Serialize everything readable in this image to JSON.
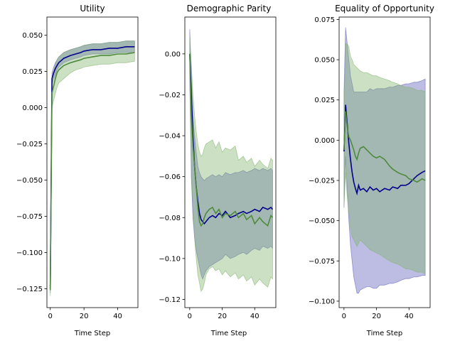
{
  "colors": {
    "series_blue": "#00008b",
    "series_green": "#4f8a3c",
    "band_blue": "#5b5bb8",
    "band_green": "#7fb26b"
  },
  "chart_data": [
    {
      "type": "line",
      "title": "Utility",
      "xlabel": "Time Step",
      "ylabel": "",
      "xlim": [
        -2,
        52
      ],
      "ylim": [
        -0.138,
        0.0625
      ],
      "xticks": [
        0,
        20,
        40
      ],
      "yticks": [
        -0.125,
        -0.1,
        -0.075,
        -0.05,
        -0.025,
        0.0,
        0.025,
        0.05
      ],
      "ytick_labels": [
        "−0.125",
        "−0.100",
        "−0.075",
        "−0.050",
        "−0.025",
        "0.000",
        "0.025",
        "0.050"
      ],
      "x": [
        0,
        1,
        2,
        3,
        4,
        5,
        6,
        8,
        10,
        12,
        15,
        18,
        20,
        25,
        30,
        35,
        40,
        45,
        50
      ],
      "series": [
        {
          "color_key": "series_blue",
          "band_key": "band_blue",
          "values": [
            -0.125,
            0.02,
            0.024,
            0.027,
            0.029,
            0.031,
            0.032,
            0.034,
            0.035,
            0.036,
            0.037,
            0.038,
            0.039,
            0.04,
            0.04,
            0.041,
            0.041,
            0.042,
            0.042
          ],
          "lower": [
            -0.128,
            0.016,
            0.02,
            0.023,
            0.026,
            0.028,
            0.029,
            0.031,
            0.032,
            0.033,
            0.034,
            0.035,
            0.036,
            0.037,
            0.037,
            0.037,
            0.038,
            0.038,
            0.038
          ],
          "upper": [
            -0.122,
            0.024,
            0.028,
            0.031,
            0.033,
            0.035,
            0.036,
            0.038,
            0.039,
            0.04,
            0.041,
            0.042,
            0.043,
            0.044,
            0.044,
            0.045,
            0.045,
            0.046,
            0.046
          ]
        },
        {
          "color_key": "series_green",
          "band_key": "band_green",
          "values": [
            -0.126,
            0.01,
            0.015,
            0.02,
            0.024,
            0.026,
            0.027,
            0.029,
            0.03,
            0.031,
            0.032,
            0.033,
            0.034,
            0.035,
            0.036,
            0.036,
            0.037,
            0.037,
            0.038
          ],
          "lower": [
            -0.13,
            0.0,
            0.005,
            0.01,
            0.014,
            0.017,
            0.018,
            0.02,
            0.022,
            0.024,
            0.026,
            0.027,
            0.028,
            0.029,
            0.03,
            0.03,
            0.031,
            0.031,
            0.032
          ],
          "upper": [
            -0.122,
            0.02,
            0.025,
            0.03,
            0.033,
            0.035,
            0.036,
            0.038,
            0.039,
            0.04,
            0.041,
            0.042,
            0.043,
            0.044,
            0.044,
            0.045,
            0.045,
            0.046,
            0.046
          ]
        }
      ]
    },
    {
      "type": "line",
      "title": "Demographic Parity",
      "xlabel": "Time Step",
      "ylabel": "",
      "xlim": [
        -3,
        53
      ],
      "ylim": [
        -0.124,
        0.018
      ],
      "xticks": [
        0,
        20,
        40
      ],
      "yticks": [
        -0.12,
        -0.1,
        -0.08,
        -0.06,
        -0.04,
        -0.02,
        0.0
      ],
      "ytick_labels": [
        "−0.12",
        "−0.10",
        "−0.08",
        "−0.06",
        "−0.04",
        "−0.02",
        "0.00"
      ],
      "x": [
        0,
        1,
        2,
        3,
        4,
        5,
        6,
        7,
        8,
        9,
        10,
        12,
        14,
        16,
        18,
        20,
        22,
        25,
        28,
        30,
        33,
        35,
        38,
        40,
        43,
        45,
        48,
        50,
        51
      ],
      "series": [
        {
          "color_key": "series_blue",
          "band_key": "band_blue",
          "values": [
            0.0,
            -0.02,
            -0.04,
            -0.055,
            -0.065,
            -0.072,
            -0.078,
            -0.081,
            -0.082,
            -0.083,
            -0.082,
            -0.08,
            -0.079,
            -0.08,
            -0.078,
            -0.079,
            -0.077,
            -0.08,
            -0.079,
            -0.078,
            -0.077,
            -0.078,
            -0.077,
            -0.076,
            -0.077,
            -0.075,
            -0.076,
            -0.075,
            -0.076
          ],
          "lower": [
            -0.012,
            -0.06,
            -0.08,
            -0.09,
            -0.096,
            -0.1,
            -0.104,
            -0.108,
            -0.11,
            -0.108,
            -0.106,
            -0.104,
            -0.103,
            -0.102,
            -0.101,
            -0.1,
            -0.098,
            -0.1,
            -0.099,
            -0.098,
            -0.097,
            -0.098,
            -0.096,
            -0.095,
            -0.096,
            -0.094,
            -0.095,
            -0.094,
            -0.095
          ],
          "upper": [
            0.012,
            -0.01,
            -0.03,
            -0.04,
            -0.048,
            -0.055,
            -0.058,
            -0.06,
            -0.061,
            -0.062,
            -0.061,
            -0.06,
            -0.059,
            -0.06,
            -0.059,
            -0.06,
            -0.058,
            -0.059,
            -0.058,
            -0.058,
            -0.057,
            -0.058,
            -0.057,
            -0.056,
            -0.057,
            -0.056,
            -0.057,
            -0.056,
            -0.057
          ]
        },
        {
          "color_key": "series_green",
          "band_key": "band_green",
          "values": [
            0.0,
            -0.03,
            -0.045,
            -0.055,
            -0.065,
            -0.075,
            -0.082,
            -0.084,
            -0.083,
            -0.08,
            -0.078,
            -0.076,
            -0.075,
            -0.078,
            -0.076,
            -0.08,
            -0.078,
            -0.079,
            -0.077,
            -0.08,
            -0.078,
            -0.081,
            -0.079,
            -0.083,
            -0.08,
            -0.082,
            -0.084,
            -0.079,
            -0.08
          ],
          "lower": [
            -0.01,
            -0.055,
            -0.075,
            -0.09,
            -0.1,
            -0.108,
            -0.112,
            -0.116,
            -0.115,
            -0.112,
            -0.108,
            -0.105,
            -0.104,
            -0.106,
            -0.105,
            -0.108,
            -0.106,
            -0.109,
            -0.107,
            -0.11,
            -0.108,
            -0.111,
            -0.109,
            -0.113,
            -0.11,
            -0.112,
            -0.114,
            -0.109,
            -0.11
          ],
          "upper": [
            0.008,
            -0.005,
            -0.02,
            -0.03,
            -0.038,
            -0.044,
            -0.048,
            -0.05,
            -0.049,
            -0.046,
            -0.044,
            -0.043,
            -0.042,
            -0.046,
            -0.043,
            -0.048,
            -0.046,
            -0.047,
            -0.045,
            -0.052,
            -0.05,
            -0.053,
            -0.051,
            -0.055,
            -0.052,
            -0.054,
            -0.056,
            -0.051,
            -0.052
          ]
        }
      ]
    },
    {
      "type": "line",
      "title": "Equality of Opportunity",
      "xlabel": "Time Step",
      "ylabel": "",
      "xlim": [
        -3,
        53
      ],
      "ylim": [
        -0.104,
        0.0765
      ],
      "xticks": [
        0,
        20,
        40
      ],
      "yticks": [
        -0.1,
        -0.075,
        -0.05,
        -0.025,
        0.0,
        0.025,
        0.05,
        0.075
      ],
      "ytick_labels": [
        "−0.100",
        "−0.075",
        "−0.050",
        "−0.025",
        "0.000",
        "0.025",
        "0.050",
        "0.075"
      ],
      "x": [
        0,
        1,
        2,
        3,
        4,
        5,
        6,
        7,
        8,
        9,
        10,
        12,
        14,
        16,
        18,
        20,
        22,
        25,
        28,
        30,
        33,
        35,
        38,
        40,
        43,
        45,
        48,
        50
      ],
      "series": [
        {
          "color_key": "series_blue",
          "band_key": "band_blue",
          "values": [
            -0.007,
            0.022,
            0.01,
            -0.002,
            -0.012,
            -0.02,
            -0.026,
            -0.03,
            -0.033,
            -0.028,
            -0.031,
            -0.03,
            -0.032,
            -0.029,
            -0.031,
            -0.03,
            -0.032,
            -0.03,
            -0.031,
            -0.029,
            -0.03,
            -0.028,
            -0.028,
            -0.027,
            -0.024,
            -0.022,
            -0.02,
            -0.019
          ],
          "lower": [
            -0.042,
            -0.01,
            -0.03,
            -0.05,
            -0.065,
            -0.075,
            -0.085,
            -0.09,
            -0.095,
            -0.095,
            -0.093,
            -0.092,
            -0.091,
            -0.091,
            -0.092,
            -0.092,
            -0.09,
            -0.09,
            -0.089,
            -0.089,
            -0.088,
            -0.087,
            -0.086,
            -0.086,
            -0.085,
            -0.085,
            -0.084,
            -0.084
          ],
          "upper": [
            0.03,
            0.07,
            0.06,
            0.05,
            0.04,
            0.035,
            0.03,
            0.03,
            0.03,
            0.03,
            0.03,
            0.03,
            0.03,
            0.032,
            0.031,
            0.032,
            0.032,
            0.032,
            0.033,
            0.033,
            0.034,
            0.034,
            0.035,
            0.035,
            0.036,
            0.036,
            0.037,
            0.038
          ]
        },
        {
          "color_key": "series_green",
          "band_key": "band_green",
          "values": [
            -0.006,
            0.018,
            0.008,
            0.002,
            0.0,
            -0.003,
            -0.006,
            -0.01,
            -0.012,
            -0.008,
            -0.005,
            -0.004,
            -0.006,
            -0.008,
            -0.01,
            -0.011,
            -0.01,
            -0.012,
            -0.016,
            -0.018,
            -0.02,
            -0.021,
            -0.022,
            -0.024,
            -0.025,
            -0.026,
            -0.024,
            -0.025
          ],
          "lower": [
            -0.04,
            -0.02,
            -0.035,
            -0.045,
            -0.055,
            -0.06,
            -0.062,
            -0.064,
            -0.066,
            -0.064,
            -0.062,
            -0.064,
            -0.066,
            -0.068,
            -0.069,
            -0.07,
            -0.071,
            -0.073,
            -0.075,
            -0.076,
            -0.077,
            -0.078,
            -0.08,
            -0.08,
            -0.081,
            -0.082,
            -0.082,
            -0.083
          ],
          "upper": [
            0.02,
            0.06,
            0.06,
            0.058,
            0.052,
            0.05,
            0.047,
            0.046,
            0.045,
            0.044,
            0.043,
            0.042,
            0.042,
            0.041,
            0.04,
            0.04,
            0.039,
            0.038,
            0.037,
            0.036,
            0.035,
            0.034,
            0.033,
            0.033,
            0.032,
            0.031,
            0.031,
            0.03
          ]
        }
      ]
    }
  ]
}
